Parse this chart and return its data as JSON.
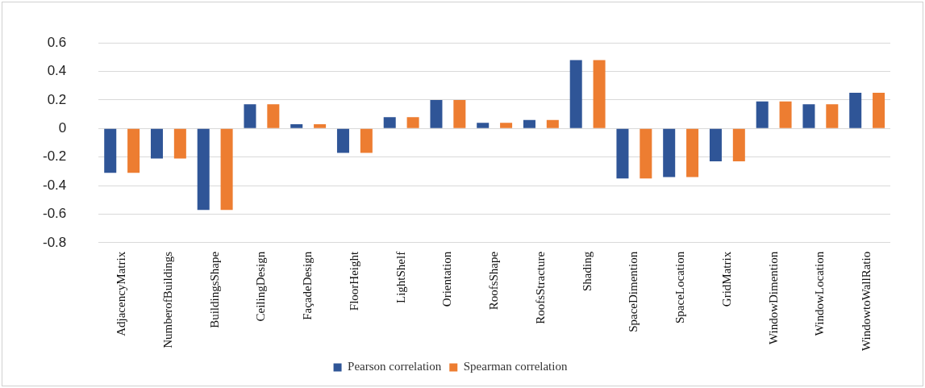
{
  "chart_data": {
    "type": "bar",
    "categories": [
      "AdjacencyMatrix",
      "NumberofBuildings",
      "BuildingsShape",
      "CeilingDesign",
      "FaçadeDesign",
      "FloorHeight",
      "LightShelf",
      "Orientation",
      "RoofsShape",
      "RoofsStracture",
      "Shading",
      "SpaceDimention",
      "SpaceLocation",
      "GridMatrix",
      "WindowDimention",
      "WindowLocation",
      "WindowtoWallRatio"
    ],
    "series": [
      {
        "name": "Pearson correlation",
        "color": "#2f5597",
        "values": [
          -0.31,
          -0.21,
          -0.57,
          0.17,
          0.03,
          -0.17,
          0.08,
          0.2,
          0.04,
          0.06,
          0.48,
          -0.35,
          -0.34,
          -0.23,
          0.19,
          0.17,
          0.25
        ]
      },
      {
        "name": "Spearman correlation",
        "color": "#ed7d31",
        "values": [
          -0.31,
          -0.21,
          -0.57,
          0.17,
          0.03,
          -0.17,
          0.08,
          0.2,
          0.04,
          0.06,
          0.48,
          -0.35,
          -0.34,
          -0.23,
          0.19,
          0.17,
          0.25
        ]
      }
    ],
    "ylim": [
      -0.8,
      0.6
    ],
    "yticks": [
      -0.8,
      -0.6,
      -0.4,
      -0.2,
      0,
      0.2,
      0.4,
      0.6
    ],
    "grid": "y",
    "legend": "bottom"
  }
}
